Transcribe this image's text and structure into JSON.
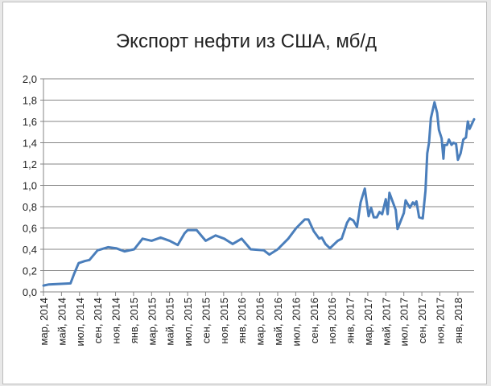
{
  "chart_data": {
    "type": "line",
    "title": "Экспорт нефти из США, мб/д",
    "xlabel": "",
    "ylabel": "",
    "ylim": [
      0,
      2.0
    ],
    "yticks": [
      "0,0",
      "0,2",
      "0,4",
      "0,6",
      "0,8",
      "1,0",
      "1,2",
      "1,4",
      "1,6",
      "1,8",
      "2,0"
    ],
    "xticks": [
      "мар, 2014",
      "май, 2014",
      "июл, 2014",
      "сен, 2014",
      "ноя, 2014",
      "янв, 2015",
      "мар, 2015",
      "май, 2015",
      "июл, 2015",
      "сен, 2015",
      "ноя, 2015",
      "янв, 2016",
      "мар, 2016",
      "май, 2016",
      "июл, 2016",
      "сен, 2016",
      "ноя, 2016",
      "янв, 2017",
      "мар, 2017",
      "май, 2017",
      "июл, 2017",
      "сен, 2017",
      "ноя, 2017",
      "янв, 2018"
    ],
    "xlim": [
      "2014-03-01",
      "2018-02-25"
    ],
    "grid": true,
    "legend": "none",
    "line_color": "#4a7ebb",
    "series": [
      {
        "x": [
          "2014-03-01",
          "2014-03-19",
          "2014-06-01",
          "2014-06-13",
          "2014-06-28",
          "2014-07-19",
          "2014-08-04",
          "2014-09-01",
          "2014-10-06",
          "2014-11-03",
          "2014-12-01",
          "2015-01-03",
          "2015-02-01",
          "2015-03-01",
          "2015-04-01",
          "2015-05-01",
          "2015-05-28",
          "2015-06-21",
          "2015-07-01",
          "2015-08-01",
          "2015-09-01",
          "2015-10-04",
          "2015-11-03",
          "2015-12-01",
          "2016-01-01",
          "2016-02-01",
          "2016-03-15",
          "2016-04-03",
          "2016-05-01",
          "2016-06-06",
          "2016-07-03",
          "2016-08-01",
          "2016-08-13",
          "2016-09-01",
          "2016-09-19",
          "2016-09-28",
          "2016-10-10",
          "2016-10-25",
          "2016-11-21",
          "2016-12-04",
          "2016-12-22",
          "2017-01-01",
          "2017-01-13",
          "2017-01-25",
          "2017-02-07",
          "2017-02-21",
          "2017-03-04",
          "2017-03-12",
          "2017-03-21",
          "2017-04-01",
          "2017-04-10",
          "2017-04-19",
          "2017-05-01",
          "2017-05-07",
          "2017-05-13",
          "2017-06-04",
          "2017-06-10",
          "2017-07-01",
          "2017-07-07",
          "2017-07-21",
          "2017-08-01",
          "2017-08-07",
          "2017-08-13",
          "2017-08-22",
          "2017-09-04",
          "2017-09-13",
          "2017-09-19",
          "2017-09-25",
          "2017-10-01",
          "2017-10-13",
          "2017-10-22",
          "2017-10-28",
          "2017-11-07",
          "2017-11-13",
          "2017-11-16",
          "2017-11-25",
          "2017-12-01",
          "2017-12-10",
          "2017-12-16",
          "2017-12-25",
          "2018-01-01",
          "2018-01-10",
          "2018-01-19",
          "2018-01-28",
          "2018-02-04",
          "2018-02-10",
          "2018-02-25"
        ],
        "y": [
          0.06,
          0.07,
          0.08,
          0.17,
          0.27,
          0.29,
          0.3,
          0.39,
          0.42,
          0.41,
          0.38,
          0.4,
          0.5,
          0.48,
          0.51,
          0.48,
          0.44,
          0.55,
          0.58,
          0.58,
          0.48,
          0.53,
          0.5,
          0.45,
          0.5,
          0.4,
          0.39,
          0.35,
          0.4,
          0.5,
          0.6,
          0.68,
          0.68,
          0.57,
          0.5,
          0.51,
          0.45,
          0.41,
          0.48,
          0.5,
          0.65,
          0.69,
          0.67,
          0.61,
          0.84,
          0.97,
          0.71,
          0.79,
          0.7,
          0.7,
          0.75,
          0.73,
          0.87,
          0.73,
          0.93,
          0.77,
          0.59,
          0.74,
          0.86,
          0.79,
          0.84,
          0.82,
          0.85,
          0.7,
          0.69,
          0.95,
          1.3,
          1.4,
          1.63,
          1.78,
          1.68,
          1.52,
          1.44,
          1.25,
          1.38,
          1.38,
          1.43,
          1.38,
          1.4,
          1.39,
          1.24,
          1.3,
          1.43,
          1.45,
          1.6,
          1.53,
          1.62
        ]
      }
    ]
  }
}
